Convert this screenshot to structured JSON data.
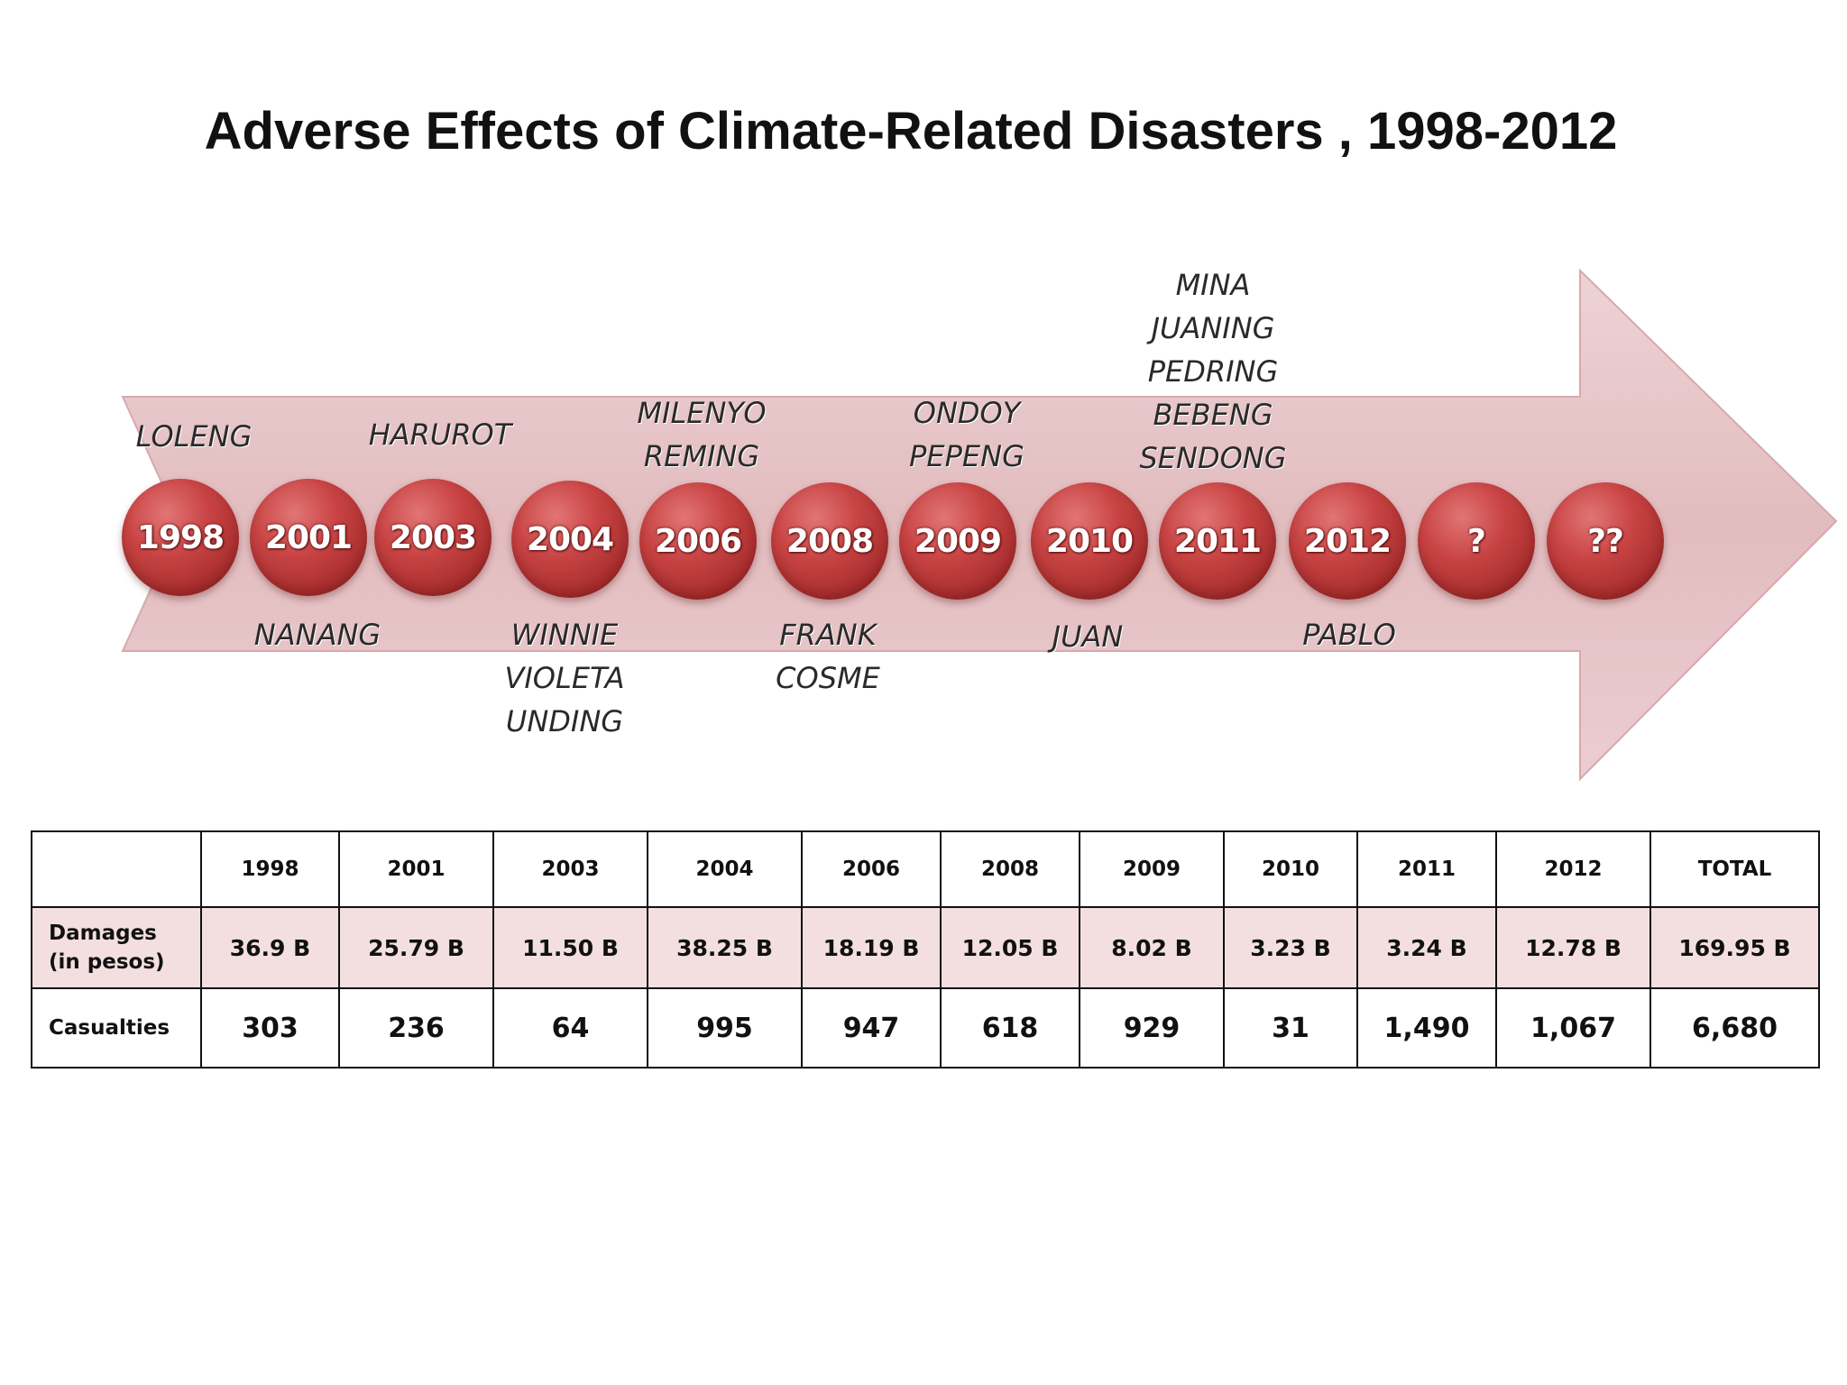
{
  "title": "Adverse Effects of Climate-Related Disasters , 1998-2012",
  "colors": {
    "arrow_fill": "#e6c3c6",
    "circle_red": "#c23b3b",
    "damages_row": "#f3dfe0"
  },
  "timeline": {
    "circles": [
      "1998",
      "2001",
      "2003",
      "2004",
      "2006",
      "2008",
      "2009",
      "2010",
      "2011",
      "2012",
      "?",
      "??"
    ],
    "storms_above": [
      {
        "year": "1998",
        "names": [
          "LOLENG"
        ]
      },
      {
        "year": "2003",
        "names": [
          "HARUROT"
        ]
      },
      {
        "year": "2006",
        "names": [
          "MILENYO",
          "REMING"
        ]
      },
      {
        "year": "2009",
        "names": [
          "ONDOY",
          "PEPENG"
        ]
      },
      {
        "year": "2011",
        "names": [
          "MINA",
          "JUANING",
          "PEDRING",
          "BEBENG",
          "SENDONG"
        ]
      }
    ],
    "storms_below": [
      {
        "year": "2001",
        "names": [
          "NANANG"
        ]
      },
      {
        "year": "2004",
        "names": [
          "WINNIE",
          "VIOLETA",
          "UNDING"
        ]
      },
      {
        "year": "2008",
        "names": [
          "FRANK",
          "COSME"
        ]
      },
      {
        "year": "2010",
        "names": [
          "JUAN"
        ]
      },
      {
        "year": "2012",
        "names": [
          "PABLO"
        ]
      }
    ]
  },
  "table": {
    "header": [
      "",
      "1998",
      "2001",
      "2003",
      "2004",
      "2006",
      "2008",
      "2009",
      "2010",
      "2011",
      "2012",
      "TOTAL"
    ],
    "damages_label": [
      "Damages",
      "(in pesos)"
    ],
    "damages": [
      "36.9 B",
      "25.79 B",
      "11.50 B",
      "38.25 B",
      "18.19 B",
      "12.05 B",
      "8.02 B",
      "3.23 B",
      "3.24 B",
      "12.78 B",
      "169.95 B"
    ],
    "casualties_label": "Casualties",
    "casualties": [
      "303",
      "236",
      "64",
      "995",
      "947",
      "618",
      "929",
      "31",
      "1,490",
      "1,067",
      "6,680"
    ]
  }
}
